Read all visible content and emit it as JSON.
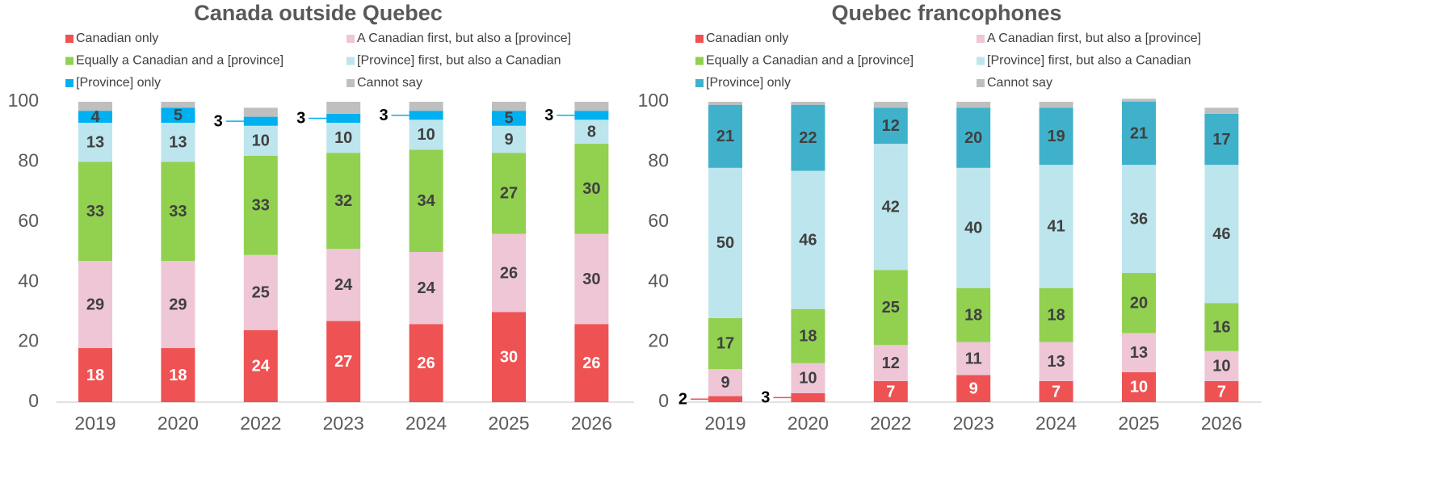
{
  "chart_data": [
    {
      "type": "bar",
      "stacked": true,
      "title": "Canada outside Quebec",
      "categories": [
        "2019",
        "2020",
        "2022",
        "2023",
        "2024",
        "2025",
        "2026"
      ],
      "ylim": [
        0,
        100
      ],
      "yticks": [
        0,
        20,
        40,
        60,
        80,
        100
      ],
      "series": [
        {
          "name": "Canadian only",
          "color": "#ee5253",
          "label_color": "#ffffff",
          "values": [
            18,
            18,
            24,
            27,
            26,
            30,
            26
          ]
        },
        {
          "name": "A Canadian first, but also a [province]",
          "color": "#eec6d6",
          "label_color": "#404040",
          "values": [
            29,
            29,
            25,
            24,
            24,
            26,
            30
          ]
        },
        {
          "name": "Equally a Canadian and a [province]",
          "color": "#92d050",
          "label_color": "#404040",
          "values": [
            33,
            33,
            33,
            32,
            34,
            27,
            30
          ]
        },
        {
          "name": "[Province] first, but also a Canadian",
          "color": "#bde5ed",
          "label_color": "#404040",
          "values": [
            13,
            13,
            10,
            10,
            10,
            9,
            8
          ]
        },
        {
          "name": "[Province] only",
          "color": "#00b0f0",
          "label_color": "#404040",
          "values": [
            4,
            5,
            3,
            3,
            3,
            5,
            3
          ]
        },
        {
          "name": "Cannot say",
          "color": "#bfbfbf",
          "show_labels": false,
          "values": [
            3,
            2,
            3,
            4,
            3,
            3,
            3
          ]
        }
      ]
    },
    {
      "type": "bar",
      "stacked": true,
      "title": "Quebec francophones",
      "categories": [
        "2019",
        "2020",
        "2022",
        "2023",
        "2024",
        "2025",
        "2026"
      ],
      "ylim": [
        0,
        100
      ],
      "yticks": [
        0,
        20,
        40,
        60,
        80,
        100
      ],
      "series": [
        {
          "name": "Canadian only",
          "color": "#ee5253",
          "label_color": "#ffffff",
          "values": [
            2,
            3,
            7,
            9,
            7,
            10,
            7
          ]
        },
        {
          "name": "A Canadian first, but also a [province]",
          "color": "#eec6d6",
          "label_color": "#404040",
          "values": [
            9,
            10,
            12,
            11,
            13,
            13,
            10
          ]
        },
        {
          "name": "Equally a Canadian and a [province]",
          "color": "#92d050",
          "label_color": "#404040",
          "values": [
            17,
            18,
            25,
            18,
            18,
            20,
            16
          ]
        },
        {
          "name": "[Province] first, but also a Canadian",
          "color": "#bde5ed",
          "label_color": "#404040",
          "values": [
            50,
            46,
            42,
            40,
            41,
            36,
            46
          ]
        },
        {
          "name": "[Province] only",
          "color": "#3fb1cb",
          "label_color": "#404040",
          "values": [
            21,
            22,
            12,
            20,
            19,
            21,
            17
          ]
        },
        {
          "name": "Cannot say",
          "color": "#bfbfbf",
          "show_labels": false,
          "values": [
            1,
            1,
            2,
            2,
            2,
            1,
            2
          ]
        }
      ]
    }
  ]
}
